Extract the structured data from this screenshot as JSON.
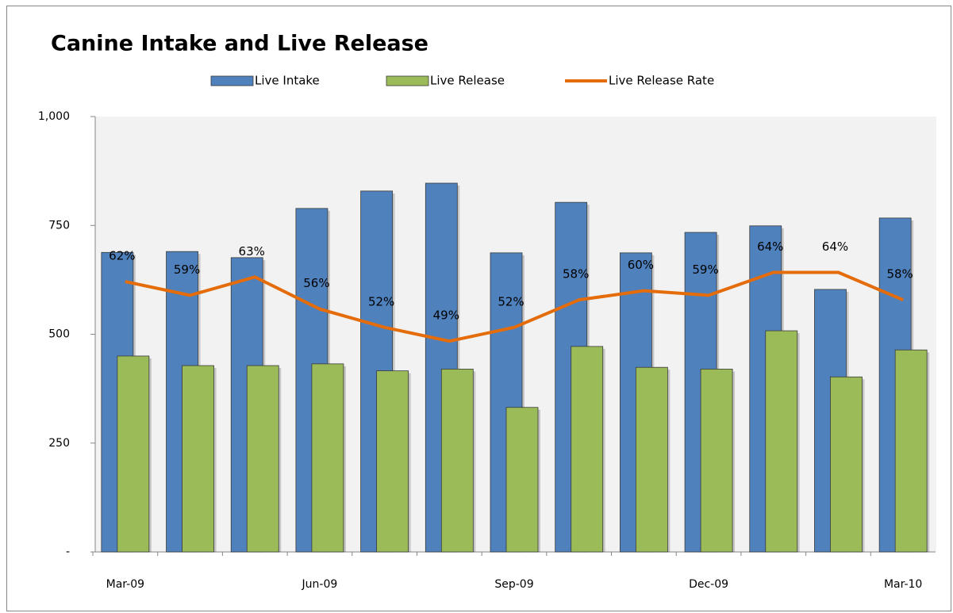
{
  "chart_data": {
    "type": "bar",
    "title": "Canine Intake and Live Release",
    "categories": [
      "Mar-09",
      null,
      null,
      "Jun-09",
      null,
      null,
      "Sep-09",
      null,
      null,
      "Dec-09",
      null,
      null,
      "Mar-10"
    ],
    "series": [
      {
        "name": "Live Intake",
        "color": "#4f81bd",
        "type": "bar",
        "values": [
          688,
          690,
          676,
          789,
          829,
          847,
          687,
          803,
          687,
          734,
          749,
          603,
          767
        ]
      },
      {
        "name": "Live Release",
        "color": "#9bbb59",
        "type": "bar",
        "values": [
          450,
          428,
          428,
          432,
          416,
          420,
          332,
          472,
          424,
          420,
          508,
          402,
          464
        ]
      },
      {
        "name": "Live Release Rate",
        "color": "#e46c0a",
        "type": "line",
        "axis": "y2",
        "values": [
          62,
          59,
          63,
          56,
          52,
          49,
          52,
          58,
          60,
          59,
          64,
          64,
          58
        ],
        "value_labels": [
          "62%",
          "59%",
          "63%",
          "56%",
          "52%",
          "49%",
          "52%",
          "58%",
          "60%",
          "59%",
          "64%",
          "64%",
          "58%"
        ]
      }
    ],
    "ylim": [
      0,
      1000
    ],
    "yticks": [
      {
        "value": 0,
        "label": "-"
      },
      250,
      500,
      750,
      {
        "value": 1000,
        "label": "1,000"
      }
    ],
    "y2lim": [
      3,
      98
    ],
    "legend": "top"
  }
}
